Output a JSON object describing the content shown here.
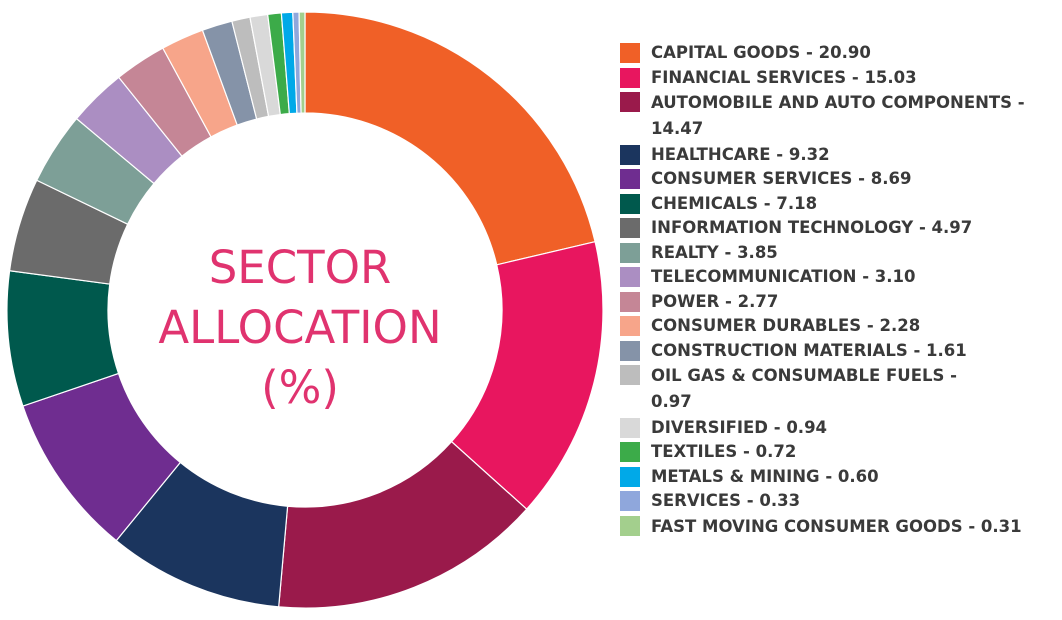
{
  "title_lines": [
    "SECTOR",
    "ALLOCATION",
    "(%)"
  ],
  "chart_data": {
    "type": "pie",
    "donut": true,
    "title": "SECTOR ALLOCATION (%)",
    "legend_position": "right",
    "slices": [
      {
        "label": "CAPITAL GOODS",
        "value": 20.9,
        "legend_text": "CAPITAL GOODS - 20.90",
        "color": "#f06027"
      },
      {
        "label": "FINANCIAL SERVICES",
        "value": 15.03,
        "legend_text": "FINANCIAL SERVICES - 15.03",
        "color": "#e8165f"
      },
      {
        "label": "AUTOMOBILE AND AUTO COMPONENTS",
        "value": 14.47,
        "legend_text": "AUTOMOBILE AND AUTO COMPONENTS - 14.47",
        "color": "#9a1a4b"
      },
      {
        "label": "HEALTHCARE",
        "value": 9.32,
        "legend_text": "HEALTHCARE - 9.32",
        "color": "#1b355e"
      },
      {
        "label": "CONSUMER SERVICES",
        "value": 8.69,
        "legend_text": "CONSUMER SERVICES - 8.69",
        "color": "#6f2d90"
      },
      {
        "label": "CHEMICALS",
        "value": 7.18,
        "legend_text": "CHEMICALS - 7.18",
        "color": "#00594d"
      },
      {
        "label": "INFORMATION TECHNOLOGY",
        "value": 4.97,
        "legend_text": "INFORMATION TECHNOLOGY - 4.97",
        "color": "#6b6b6b"
      },
      {
        "label": "REALTY",
        "value": 3.85,
        "legend_text": "REALTY - 3.85",
        "color": "#7d9f97"
      },
      {
        "label": "TELECOMMUNICATION",
        "value": 3.1,
        "legend_text": "TELECOMMUNICATION - 3.10",
        "color": "#ab8ec2"
      },
      {
        "label": "POWER",
        "value": 2.77,
        "legend_text": "POWER - 2.77",
        "color": "#c58696"
      },
      {
        "label": "CONSUMER DURABLES",
        "value": 2.28,
        "legend_text": "CONSUMER DURABLES - 2.28",
        "color": "#f7a58a"
      },
      {
        "label": "CONSTRUCTION MATERIALS",
        "value": 1.61,
        "legend_text": "CONSTRUCTION MATERIALS - 1.61",
        "color": "#8593a8"
      },
      {
        "label": "OIL GAS & CONSUMABLE FUELS",
        "value": 0.97,
        "legend_text": "OIL GAS & CONSUMABLE FUELS - 0.97",
        "color": "#bdbdbd"
      },
      {
        "label": "DIVERSIFIED",
        "value": 0.94,
        "legend_text": "DIVERSIFIED - 0.94",
        "color": "#d9d9d9"
      },
      {
        "label": "TEXTILES",
        "value": 0.72,
        "legend_text": "TEXTILES - 0.72",
        "color": "#3cab49"
      },
      {
        "label": "METALS & MINING",
        "value": 0.6,
        "legend_text": "METALS & MINING - 0.60",
        "color": "#00a9e8"
      },
      {
        "label": "SERVICES",
        "value": 0.33,
        "legend_text": "SERVICES - 0.33",
        "color": "#8fa7dc"
      },
      {
        "label": "FAST MOVING CONSUMER GOODS",
        "value": 0.31,
        "legend_text": "FAST MOVING CONSUMER GOODS - 0.31",
        "color": "#a3cf8d"
      }
    ]
  }
}
